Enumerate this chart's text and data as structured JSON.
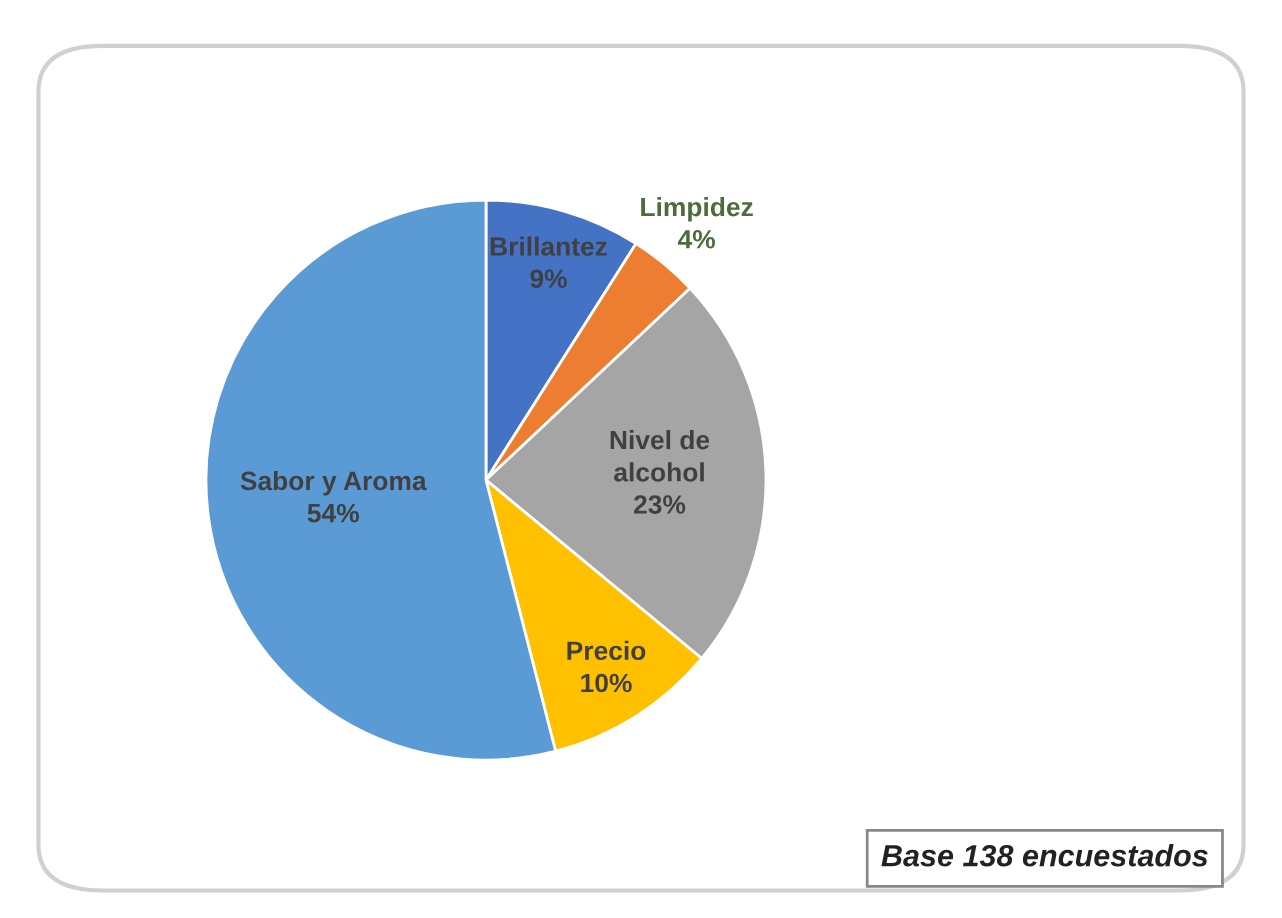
{
  "chart_data": {
    "type": "pie",
    "categories": [
      "Brillantez",
      "Limpidez",
      "Nivel de\nalcohol",
      "Precio",
      "Sabor y Aroma"
    ],
    "values": [
      9,
      4,
      23,
      10,
      54
    ],
    "value_labels": [
      "9%",
      "4%",
      "23%",
      "10%",
      "54%"
    ],
    "colors": [
      "#4472c4",
      "#ed7d31",
      "#a5a5a5",
      "#ffc000",
      "#5b9bd5"
    ],
    "annotations": [
      "Base 138 encuestados"
    ],
    "legend": false
  }
}
